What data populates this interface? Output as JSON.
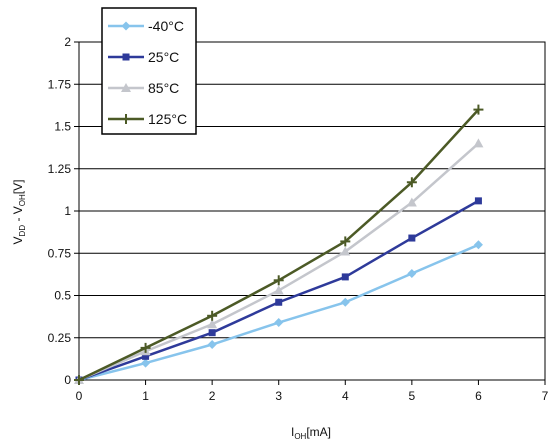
{
  "chart_data": {
    "type": "line",
    "xlabel": "I_OH [mA]",
    "xlabel_main": "I",
    "xlabel_sub": "OH",
    "xlabel_unit": "[mA]",
    "ylabel": "V_DD - V_OH [V]",
    "ylabel_parts": [
      "V",
      "DD",
      " - V",
      "OH",
      "[V]"
    ],
    "xlim": [
      0,
      7
    ],
    "ylim": [
      0,
      2
    ],
    "x_ticks": [
      "0",
      "1",
      "2",
      "3",
      "4",
      "5",
      "6",
      "7"
    ],
    "y_ticks": [
      "0",
      "0.25",
      "0.5",
      "0.75",
      "1",
      "1.25",
      "1.5",
      "1.75",
      "2"
    ],
    "x_tick_values": [
      0,
      1,
      2,
      3,
      4,
      5,
      6,
      7
    ],
    "y_tick_values": [
      0,
      0.25,
      0.5,
      0.75,
      1,
      1.25,
      1.5,
      1.75,
      2
    ],
    "grid": "horizontal",
    "legend_position": "top-left",
    "x": [
      0,
      1,
      2,
      3,
      4,
      5,
      6
    ],
    "series": [
      {
        "name": "-40°C",
        "color": "#87c4ec",
        "marker": "diamond",
        "values": [
          0,
          0.1,
          0.21,
          0.34,
          0.46,
          0.63,
          0.8
        ]
      },
      {
        "name": "25°C",
        "color": "#2e3a9a",
        "marker": "square",
        "values": [
          0,
          0.14,
          0.28,
          0.46,
          0.61,
          0.84,
          1.06
        ]
      },
      {
        "name": "85°C",
        "color": "#c4c6cc",
        "marker": "triangle",
        "values": [
          0,
          0.17,
          0.33,
          0.53,
          0.76,
          1.05,
          1.4
        ]
      },
      {
        "name": "125°C",
        "color": "#4c5a26",
        "marker": "plus",
        "values": [
          0,
          0.19,
          0.38,
          0.59,
          0.82,
          1.17,
          1.6
        ]
      }
    ]
  }
}
